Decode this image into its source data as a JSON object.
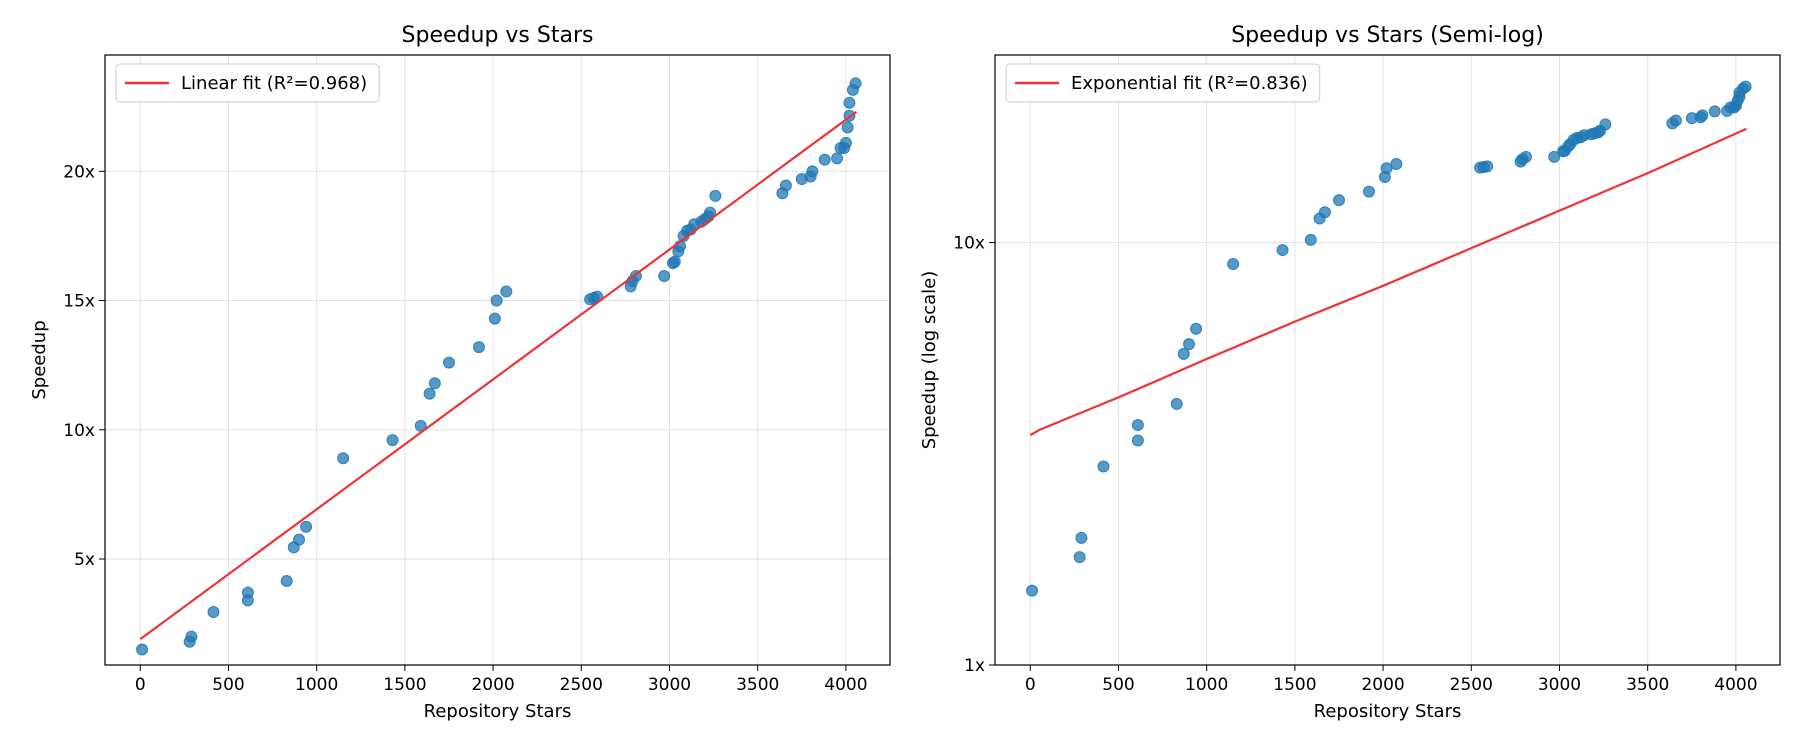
{
  "chart_data": [
    {
      "type": "scatter",
      "title": "Speedup vs Stars",
      "xlabel": "Repository Stars",
      "ylabel": "Speedup",
      "xlim": [
        -200,
        4250
      ],
      "ylim": [
        0.9,
        24.5
      ],
      "yscale": "linear",
      "grid": true,
      "legend_position": "top-left",
      "x_ticks": [
        {
          "value": 0,
          "label": "0"
        },
        {
          "value": 500,
          "label": "500"
        },
        {
          "value": 1000,
          "label": "1000"
        },
        {
          "value": 1500,
          "label": "1500"
        },
        {
          "value": 2000,
          "label": "2000"
        },
        {
          "value": 2500,
          "label": "2500"
        },
        {
          "value": 3000,
          "label": "3000"
        },
        {
          "value": 3500,
          "label": "3500"
        },
        {
          "value": 4000,
          "label": "4000"
        }
      ],
      "y_ticks": [
        {
          "value": 5,
          "label": "5x"
        },
        {
          "value": 10,
          "label": "10x"
        },
        {
          "value": 15,
          "label": "15x"
        },
        {
          "value": 20,
          "label": "20x"
        }
      ],
      "series": [
        {
          "kind": "points",
          "color": "#1f77b4",
          "points": [
            [
              10,
              1.5
            ],
            [
              280,
              1.8
            ],
            [
              290,
              2.0
            ],
            [
              415,
              2.95
            ],
            [
              610,
              3.4
            ],
            [
              610,
              3.7
            ],
            [
              830,
              4.15
            ],
            [
              870,
              5.45
            ],
            [
              900,
              5.75
            ],
            [
              940,
              6.25
            ],
            [
              1150,
              8.9
            ],
            [
              1430,
              9.6
            ],
            [
              1590,
              10.15
            ],
            [
              1640,
              11.4
            ],
            [
              1670,
              11.8
            ],
            [
              1750,
              12.6
            ],
            [
              1920,
              13.2
            ],
            [
              2010,
              14.3
            ],
            [
              2020,
              15.0
            ],
            [
              2075,
              15.35
            ],
            [
              2550,
              15.05
            ],
            [
              2570,
              15.1
            ],
            [
              2590,
              15.15
            ],
            [
              2780,
              15.55
            ],
            [
              2790,
              15.75
            ],
            [
              2810,
              15.95
            ],
            [
              2970,
              15.95
            ],
            [
              3020,
              16.45
            ],
            [
              3030,
              16.5
            ],
            [
              3050,
              16.9
            ],
            [
              3060,
              17.1
            ],
            [
              3080,
              17.5
            ],
            [
              3100,
              17.7
            ],
            [
              3120,
              17.75
            ],
            [
              3140,
              17.95
            ],
            [
              3180,
              18.05
            ],
            [
              3200,
              18.15
            ],
            [
              3220,
              18.25
            ],
            [
              3230,
              18.4
            ],
            [
              3260,
              19.05
            ],
            [
              3640,
              19.15
            ],
            [
              3660,
              19.45
            ],
            [
              3750,
              19.7
            ],
            [
              3800,
              19.8
            ],
            [
              3810,
              20.0
            ],
            [
              3880,
              20.45
            ],
            [
              3950,
              20.5
            ],
            [
              3970,
              20.9
            ],
            [
              3990,
              20.9
            ],
            [
              4000,
              21.1
            ],
            [
              4010,
              21.7
            ],
            [
              4020,
              22.15
            ],
            [
              4020,
              22.65
            ],
            [
              4040,
              23.15
            ],
            [
              4055,
              23.4
            ]
          ]
        },
        {
          "kind": "line",
          "name": "Linear fit (R²=0.968)",
          "color": "#f03232",
          "points": [
            [
              0,
              1.9
            ],
            [
              4060,
              22.3
            ]
          ]
        }
      ]
    },
    {
      "type": "scatter",
      "title": "Speedup vs Stars (Semi-log)",
      "xlabel": "Repository Stars",
      "ylabel": "Speedup (log scale)",
      "xlim": [
        -200,
        4250
      ],
      "ylim": [
        1,
        27.8
      ],
      "yscale": "log",
      "grid": true,
      "legend_position": "top-left",
      "x_ticks": [
        {
          "value": 0,
          "label": "0"
        },
        {
          "value": 500,
          "label": "500"
        },
        {
          "value": 1000,
          "label": "1000"
        },
        {
          "value": 1500,
          "label": "1500"
        },
        {
          "value": 2000,
          "label": "2000"
        },
        {
          "value": 2500,
          "label": "2500"
        },
        {
          "value": 3000,
          "label": "3000"
        },
        {
          "value": 3500,
          "label": "3500"
        },
        {
          "value": 4000,
          "label": "4000"
        }
      ],
      "y_ticks": [
        {
          "value": 1,
          "label": "1x"
        },
        {
          "value": 10,
          "label": "10x"
        }
      ],
      "series": [
        {
          "kind": "points",
          "color": "#1f77b4",
          "points": [
            [
              10,
              1.5
            ],
            [
              280,
              1.8
            ],
            [
              290,
              2.0
            ],
            [
              415,
              2.95
            ],
            [
              610,
              3.4
            ],
            [
              610,
              3.7
            ],
            [
              830,
              4.15
            ],
            [
              870,
              5.45
            ],
            [
              900,
              5.75
            ],
            [
              940,
              6.25
            ],
            [
              1150,
              8.9
            ],
            [
              1430,
              9.6
            ],
            [
              1590,
              10.15
            ],
            [
              1640,
              11.4
            ],
            [
              1670,
              11.8
            ],
            [
              1750,
              12.6
            ],
            [
              1920,
              13.2
            ],
            [
              2010,
              14.3
            ],
            [
              2020,
              15.0
            ],
            [
              2075,
              15.35
            ],
            [
              2550,
              15.05
            ],
            [
              2570,
              15.1
            ],
            [
              2590,
              15.15
            ],
            [
              2780,
              15.55
            ],
            [
              2790,
              15.75
            ],
            [
              2810,
              15.95
            ],
            [
              2970,
              15.95
            ],
            [
              3020,
              16.45
            ],
            [
              3030,
              16.5
            ],
            [
              3050,
              16.9
            ],
            [
              3060,
              17.1
            ],
            [
              3080,
              17.5
            ],
            [
              3100,
              17.7
            ],
            [
              3120,
              17.75
            ],
            [
              3140,
              17.95
            ],
            [
              3180,
              18.05
            ],
            [
              3200,
              18.15
            ],
            [
              3220,
              18.25
            ],
            [
              3230,
              18.4
            ],
            [
              3260,
              19.05
            ],
            [
              3640,
              19.15
            ],
            [
              3660,
              19.45
            ],
            [
              3750,
              19.7
            ],
            [
              3800,
              19.8
            ],
            [
              3810,
              20.0
            ],
            [
              3880,
              20.45
            ],
            [
              3950,
              20.5
            ],
            [
              3970,
              20.9
            ],
            [
              3990,
              20.9
            ],
            [
              4000,
              21.1
            ],
            [
              4010,
              21.7
            ],
            [
              4020,
              22.15
            ],
            [
              4020,
              22.65
            ],
            [
              4040,
              23.15
            ],
            [
              4055,
              23.4
            ]
          ]
        },
        {
          "kind": "line",
          "name": "Exponential fit (R²=0.836)",
          "color": "#f03232",
          "points": [
            [
              0,
              3.5
            ],
            [
              50,
              3.6
            ],
            [
              500,
              4.3
            ],
            [
              1000,
              5.3
            ],
            [
              1500,
              6.5
            ],
            [
              2000,
              7.9
            ],
            [
              2500,
              9.7
            ],
            [
              3000,
              11.9
            ],
            [
              3500,
              14.6
            ],
            [
              4060,
              18.6
            ]
          ]
        }
      ]
    }
  ]
}
